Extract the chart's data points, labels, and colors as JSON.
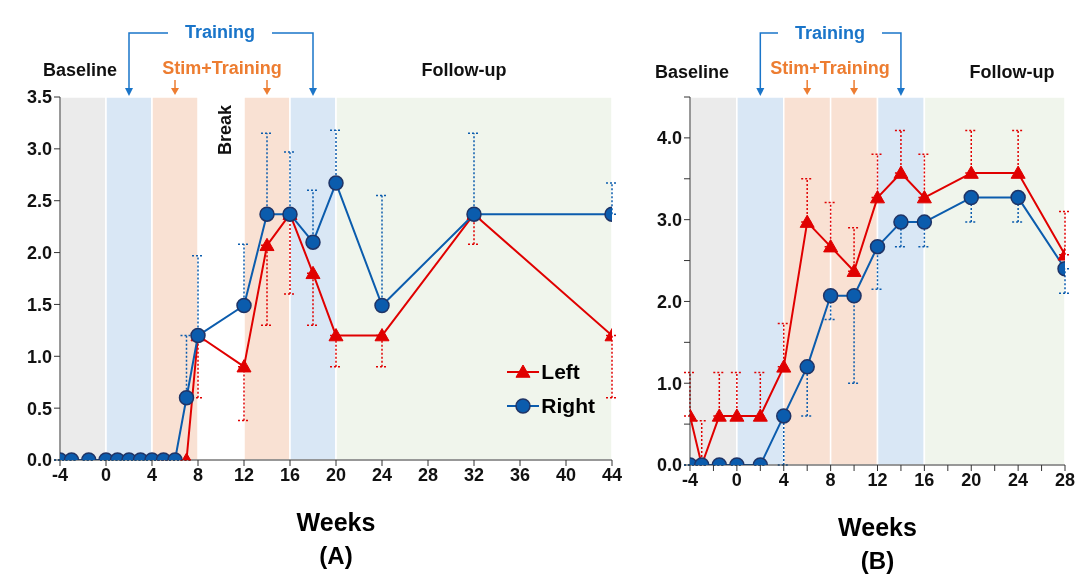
{
  "chart_data": [
    {
      "type": "line",
      "title": "(A)",
      "xlabel": "Weeks",
      "x": [
        -4,
        -3,
        -1.5,
        0,
        1,
        2,
        3,
        4,
        5,
        6,
        7,
        8,
        12,
        14,
        16,
        18,
        20,
        24,
        32,
        44
      ],
      "series": [
        {
          "name": "Left",
          "color": "#e00000",
          "marker": "triangle",
          "values": [
            null,
            null,
            null,
            null,
            null,
            null,
            null,
            null,
            0,
            0,
            0,
            1.2,
            0.9,
            2.07,
            2.37,
            1.8,
            1.2,
            1.2,
            2.37,
            1.2
          ],
          "errors": [
            null,
            null,
            null,
            null,
            null,
            null,
            null,
            null,
            null,
            null,
            null,
            [
              0.6,
              1.2
            ],
            [
              0.38,
              0.9
            ],
            [
              1.3,
              2.07
            ],
            [
              1.6,
              2.37
            ],
            [
              1.3,
              1.8
            ],
            [
              0.9,
              1.2
            ],
            [
              0.9,
              1.2
            ],
            [
              2.08,
              2.37
            ],
            [
              0.6,
              1.2
            ]
          ]
        },
        {
          "name": "Right",
          "color": "#0b5cad",
          "marker": "circle",
          "values": [
            0,
            0,
            0,
            0,
            0,
            0,
            0,
            0,
            0,
            0,
            0.6,
            1.2,
            1.49,
            2.37,
            2.37,
            2.1,
            2.67,
            1.49,
            2.37,
            2.37
          ],
          "errors": [
            null,
            null,
            null,
            null,
            null,
            null,
            null,
            null,
            null,
            null,
            [
              0.6,
              1.2
            ],
            [
              1.2,
              1.97
            ],
            [
              1.49,
              2.08
            ],
            [
              2.37,
              3.15
            ],
            [
              2.37,
              2.97
            ],
            [
              2.1,
              2.6
            ],
            [
              2.67,
              3.18
            ],
            [
              1.49,
              2.55
            ],
            [
              2.37,
              3.15
            ],
            [
              2.37,
              2.67
            ]
          ]
        }
      ],
      "xlim": [
        -4,
        44
      ],
      "xticks": [
        -4,
        0,
        4,
        8,
        12,
        16,
        20,
        24,
        28,
        32,
        36,
        40,
        44
      ],
      "ylim": [
        0,
        3.5
      ],
      "yticks": [
        {
          "value": 0,
          "label": "0.0"
        },
        0.5,
        {
          "value": 1,
          "label": "1.0"
        },
        1.5,
        {
          "value": 2,
          "label": "2.0"
        },
        2.5,
        {
          "value": 3,
          "label": "3.0"
        },
        3.5
      ],
      "bands": [
        {
          "axis": "x",
          "from": -4,
          "to": 0,
          "color": "#ebebeb"
        },
        {
          "axis": "x",
          "from": 0,
          "to": 4,
          "color": "#d9e7f5"
        },
        {
          "axis": "x",
          "from": 4,
          "to": 8,
          "color": "#f9e1d3"
        },
        {
          "axis": "x",
          "from": 12,
          "to": 16,
          "color": "#f9e1d3"
        },
        {
          "axis": "x",
          "from": 16,
          "to": 20,
          "color": "#d9e7f5"
        },
        {
          "axis": "x",
          "from": 20,
          "to": 44,
          "color": "#f0f5ec"
        }
      ],
      "annotations": [
        "Baseline",
        "Training",
        "Stim+Training",
        "Follow-up",
        "Break"
      ],
      "grid": false,
      "legend": "bottom right",
      "line_style": "solid"
    },
    {
      "type": "line",
      "title": "(B)",
      "xlabel": "Weeks",
      "x": [
        -4,
        -3,
        -1.5,
        0,
        2,
        4,
        6,
        8,
        10,
        12,
        14,
        16,
        20,
        24,
        28
      ],
      "series": [
        {
          "color": "#e00000",
          "marker": "triangle",
          "values": [
            0.6,
            0,
            0.6,
            0.6,
            0.6,
            1.2,
            2.97,
            2.67,
            2.37,
            3.27,
            3.57,
            3.27,
            3.57,
            3.57,
            2.57
          ],
          "errors": [
            [
              0.6,
              1.13
            ],
            [
              0,
              0.54
            ],
            [
              0.6,
              1.13
            ],
            [
              0.6,
              1.13
            ],
            [
              0.6,
              1.13
            ],
            [
              1.2,
              1.73
            ],
            [
              2.97,
              3.5
            ],
            [
              2.67,
              3.21
            ],
            [
              2.37,
              2.9
            ],
            [
              3.27,
              3.8
            ],
            [
              3.57,
              4.09
            ],
            [
              3.27,
              3.8
            ],
            [
              3.57,
              4.09
            ],
            [
              3.57,
              4.09
            ],
            [
              2.57,
              3.1
            ]
          ]
        },
        {
          "color": "#0b5cad",
          "marker": "circle",
          "values": [
            0,
            0,
            0,
            0,
            0,
            0.6,
            1.2,
            2.07,
            2.07,
            2.67,
            2.97,
            2.97,
            3.27,
            3.27,
            2.4
          ],
          "errors": [
            null,
            null,
            null,
            null,
            null,
            [
              0,
              0.6
            ],
            [
              0.6,
              1.2
            ],
            [
              1.78,
              2.07
            ],
            [
              1.0,
              2.07
            ],
            [
              2.15,
              2.67
            ],
            [
              2.67,
              2.97
            ],
            [
              2.67,
              2.97
            ],
            [
              2.97,
              3.27
            ],
            [
              2.97,
              3.27
            ],
            [
              2.1,
              2.4
            ]
          ]
        }
      ],
      "xlim": [
        -4,
        28
      ],
      "xticks": [
        -4,
        {
          "value": -2,
          "label": null
        },
        0,
        {
          "value": 2,
          "label": null
        },
        4,
        {
          "value": 6,
          "label": null
        },
        8,
        {
          "value": 10,
          "label": null
        },
        12,
        {
          "value": 14,
          "label": null
        },
        16,
        {
          "value": 18,
          "label": null
        },
        20,
        {
          "value": 22,
          "label": null
        },
        24,
        {
          "value": 26,
          "label": null
        },
        28
      ],
      "ylim": [
        0,
        4.5
      ],
      "yticks": [
        {
          "value": 0,
          "label": "0.0"
        },
        {
          "value": 0.5,
          "label": null
        },
        {
          "value": 1,
          "label": "1.0"
        },
        {
          "value": 1.5,
          "label": null
        },
        {
          "value": 2,
          "label": "2.0"
        },
        {
          "value": 2.5,
          "label": null
        },
        {
          "value": 3,
          "label": "3.0"
        },
        {
          "value": 3.5,
          "label": null
        },
        {
          "value": 4,
          "label": "4.0"
        },
        {
          "value": 4.5,
          "label": null
        }
      ],
      "bands": [
        {
          "axis": "x",
          "from": -4,
          "to": 0,
          "color": "#ebebeb"
        },
        {
          "axis": "x",
          "from": 0,
          "to": 4,
          "color": "#d9e7f5"
        },
        {
          "axis": "x",
          "from": 4,
          "to": 8,
          "color": "#f9e1d3"
        },
        {
          "axis": "x",
          "from": 8,
          "to": 12,
          "color": "#f9e1d3"
        },
        {
          "axis": "x",
          "from": 12,
          "to": 16,
          "color": "#d9e7f5"
        },
        {
          "axis": "x",
          "from": 16,
          "to": 28,
          "color": "#f0f5ec"
        }
      ],
      "annotations": [
        "Baseline",
        "Training",
        "Stim+Training",
        "Follow-up"
      ],
      "grid": false,
      "legend": false,
      "line_style": "solid"
    }
  ]
}
